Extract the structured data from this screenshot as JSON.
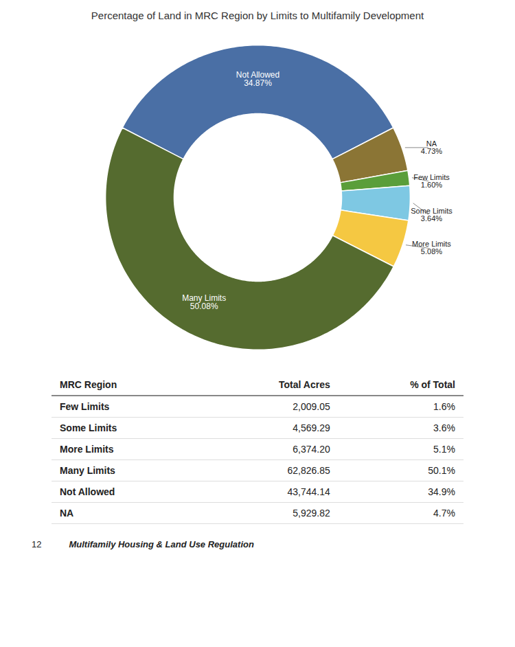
{
  "chart_data": {
    "type": "donut",
    "title": "Percentage of Land in MRC Region by Limits to Multifamily Development",
    "categories": [
      "Not Allowed",
      "NA",
      "Few Limits",
      "Some Limits",
      "More Limits",
      "Many Limits"
    ],
    "values": [
      34.87,
      4.73,
      1.6,
      3.64,
      5.08,
      50.08
    ],
    "value_labels": [
      "34.87%",
      "4.73%",
      "1.60%",
      "3.64%",
      "5.08%",
      "50.08%"
    ],
    "colors": [
      "#4a6fa5",
      "#8b7535",
      "#5a9e3a",
      "#7ec8e3",
      "#f5c842",
      "#556b2f"
    ],
    "data_labels": true
  },
  "table": {
    "headers": [
      "MRC Region",
      "Total Acres",
      "% of Total"
    ],
    "rows": [
      [
        "Few Limits",
        "2,009.05",
        "1.6%"
      ],
      [
        "Some Limits",
        "4,569.29",
        "3.6%"
      ],
      [
        "More Limits",
        "6,374.20",
        "5.1%"
      ],
      [
        "Many Limits",
        "62,826.85",
        "50.1%"
      ],
      [
        "Not Allowed",
        "43,744.14",
        "34.9%"
      ],
      [
        "NA",
        "5,929.82",
        "4.7%"
      ]
    ]
  },
  "footer": {
    "page_number": "12",
    "text": "Multifamily Housing & Land Use Regulation"
  }
}
